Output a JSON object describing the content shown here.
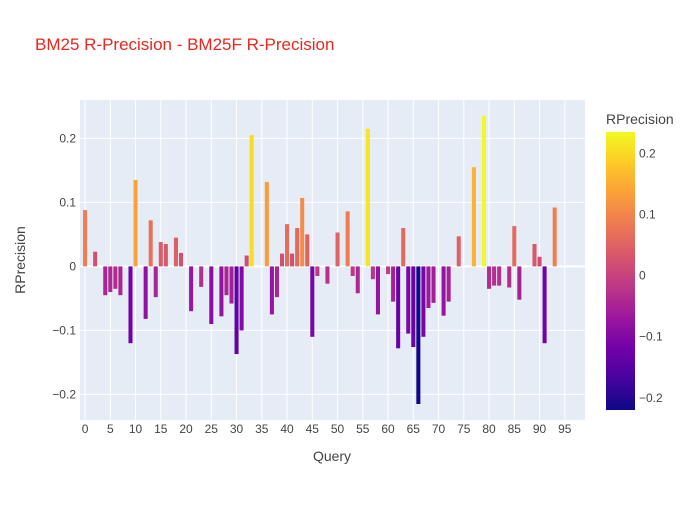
{
  "chart_data": {
    "type": "bar",
    "title": "BM25 R-Precision - BM25F R-Precision",
    "title_color": "#e8271e",
    "xlabel": "Query",
    "ylabel": "RPrecision",
    "xlim": [
      -1,
      99
    ],
    "ylim": [
      -0.24,
      0.26
    ],
    "x_ticks": [
      0,
      5,
      10,
      15,
      20,
      25,
      30,
      35,
      40,
      45,
      50,
      55,
      60,
      65,
      70,
      75,
      80,
      85,
      90,
      95
    ],
    "y_ticks": [
      -0.2,
      -0.1,
      0,
      0.1,
      0.2
    ],
    "y_tick_labels": [
      "−0.2",
      "−0.1",
      "0",
      "0.1",
      "0.2"
    ],
    "grid": true,
    "plot_background": "#e5ecf6",
    "colorbar": {
      "title": "RPrecision",
      "min": -0.22,
      "max": 0.235,
      "ticks": [
        -0.2,
        -0.1,
        0,
        0.1,
        0.2
      ],
      "tick_labels": [
        "−0.2",
        "−0.1",
        "0",
        "0.1",
        "0.2"
      ],
      "colorscale": [
        "#0d0887",
        "#46039f",
        "#7201a8",
        "#9c179e",
        "#bd3786",
        "#d8576b",
        "#ed7953",
        "#fb9f3a",
        "#fdca26",
        "#f0f921"
      ]
    },
    "x": [
      0,
      2,
      4,
      5,
      6,
      7,
      9,
      10,
      12,
      13,
      14,
      15,
      16,
      18,
      19,
      21,
      23,
      25,
      27,
      28,
      29,
      30,
      31,
      32,
      33,
      36,
      37,
      38,
      39,
      40,
      41,
      42,
      43,
      44,
      45,
      46,
      48,
      50,
      52,
      53,
      54,
      56,
      57,
      58,
      60,
      61,
      62,
      63,
      64,
      65,
      66,
      67,
      68,
      69,
      71,
      72,
      74,
      77,
      79,
      80,
      81,
      82,
      84,
      85,
      86,
      89,
      90,
      91,
      93
    ],
    "values": [
      0.088,
      0.023,
      -0.045,
      -0.04,
      -0.035,
      -0.045,
      -0.12,
      0.135,
      -0.082,
      0.072,
      -0.048,
      0.038,
      0.035,
      0.045,
      0.021,
      -0.07,
      -0.032,
      -0.09,
      -0.078,
      -0.045,
      -0.058,
      -0.137,
      -0.1,
      0.017,
      0.205,
      0.132,
      -0.075,
      -0.048,
      0.02,
      0.066,
      0.02,
      0.06,
      0.107,
      0.05,
      -0.11,
      -0.015,
      -0.027,
      0.053,
      0.086,
      -0.015,
      -0.042,
      0.215,
      -0.02,
      -0.075,
      -0.012,
      -0.055,
      -0.128,
      0.06,
      -0.105,
      -0.126,
      -0.215,
      -0.11,
      -0.065,
      -0.057,
      -0.077,
      -0.055,
      0.047,
      0.155,
      0.235,
      -0.035,
      -0.03,
      -0.03,
      -0.033,
      0.063,
      -0.052,
      0.035,
      0.015,
      -0.12,
      0.092
    ]
  }
}
